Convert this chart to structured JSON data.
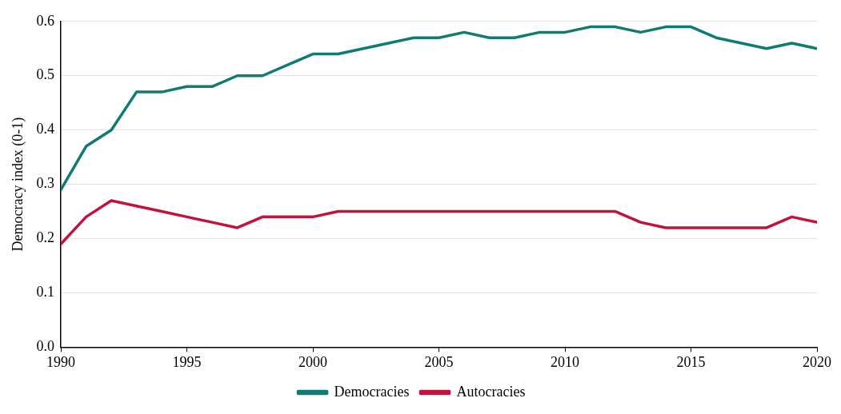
{
  "chart_data": {
    "type": "line",
    "ylabel": "Democracy index (0-1)",
    "x": [
      1990,
      1991,
      1992,
      1993,
      1994,
      1995,
      1996,
      1997,
      1998,
      1999,
      2000,
      2001,
      2002,
      2003,
      2004,
      2005,
      2006,
      2007,
      2008,
      2009,
      2010,
      2011,
      2012,
      2013,
      2014,
      2015,
      2016,
      2017,
      2018,
      2019,
      2020
    ],
    "series": [
      {
        "name": "Democracies",
        "color": "#0f7b73",
        "values": [
          0.29,
          0.37,
          0.4,
          0.47,
          0.47,
          0.48,
          0.48,
          0.5,
          0.5,
          0.52,
          0.54,
          0.54,
          0.55,
          0.56,
          0.57,
          0.57,
          0.58,
          0.57,
          0.57,
          0.58,
          0.58,
          0.59,
          0.59,
          0.58,
          0.59,
          0.59,
          0.57,
          0.56,
          0.55,
          0.56,
          0.55
        ]
      },
      {
        "name": "Autocracies",
        "color": "#c0143c",
        "values": [
          0.19,
          0.24,
          0.27,
          0.26,
          0.25,
          0.24,
          0.23,
          0.22,
          0.24,
          0.24,
          0.24,
          0.25,
          0.25,
          0.25,
          0.25,
          0.25,
          0.25,
          0.25,
          0.25,
          0.25,
          0.25,
          0.25,
          0.25,
          0.23,
          0.22,
          0.22,
          0.22,
          0.22,
          0.22,
          0.24,
          0.23
        ]
      }
    ],
    "xlim": [
      1990,
      2020
    ],
    "xticks": [
      1990,
      1995,
      2000,
      2005,
      2010,
      2015,
      2020
    ],
    "ylim": [
      0,
      0.6
    ],
    "yticks": [
      {
        "value": 0,
        "label": "0.0"
      },
      0.1,
      0.2,
      0.3,
      0.4,
      0.5,
      0.6
    ],
    "grid": "y",
    "legend": "bottom",
    "marker": "none",
    "line_style": "solid"
  }
}
